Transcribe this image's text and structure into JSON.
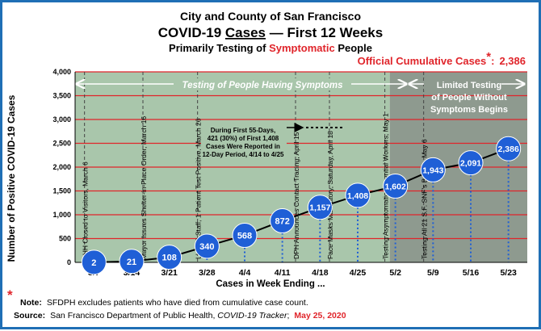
{
  "header": {
    "line1": "City and County of San Francisco",
    "line2a": "COVID-19 ",
    "line2b": "Cases",
    "line2c": " — First 12 Weeks",
    "line3a": "Primarily Testing of ",
    "line3b": "Symptomatic",
    "line3c": " People",
    "official_label": "Official Cumulative Cases",
    "official_star": "*",
    "official_sep": ":",
    "official_value": "2,386"
  },
  "bands": {
    "symptom_label": "Testing of People Having Symptoms",
    "limited_line1": "Limited Testing",
    "limited_line2": "of People Without",
    "limited_line3": "Symptoms Begins"
  },
  "annotation": {
    "line1": "During First 55-Days,",
    "line2": "421 (30%) of First 1,408",
    "line3": "Cases Were Reported in",
    "line4": "12-Day Period, 4/14 to 4/25"
  },
  "events": [
    {
      "text": "LHH Closed to Visitors, March 6"
    },
    {
      "text": "Mayor Issues Shelter-in-Place Order, March 16"
    },
    {
      "text": "LHH: 6 Staff, 1 Patient Test Positive, March 26"
    },
    {
      "text": "DPH Announces Contact Tracing, April 15"
    },
    {
      "text": "Face Masks Mandatory, Saturday, April 18"
    },
    {
      "text": "Testing Asymptomatic Essential Workers, May 1"
    },
    {
      "text": "Testing All 21 S.F. SNF's Begins, May 6"
    }
  ],
  "footer": {
    "note_star": "*",
    "note_bold": "Note:",
    "note_text": "SFDPH excludes patients who have died from cumulative case count.",
    "source_bold": "Source:",
    "source_text": "San Francisco Department of Public Health, ",
    "source_italic": "COVID-19 Tracker",
    "source_comma": ";",
    "source_date": "May 25, 2020"
  },
  "colors": {
    "green_band": "#a9c6ab",
    "gray_band": "#8e9a8f",
    "gridline": "#e0252b",
    "bubble": "#1f5fd6",
    "red_text": "#e0252b",
    "frame": "#1f6fb5"
  },
  "chart_data": {
    "type": "line",
    "title": "COVID-19 Cases — First 12 Weeks",
    "xlabel": "Cases in Week Ending ...",
    "ylabel": "Number of Positive COVID-19 Cases",
    "categories": [
      "3/7",
      "3/14",
      "3/21",
      "3/28",
      "4/4",
      "4/11",
      "4/18",
      "4/25",
      "5/2",
      "5/9",
      "5/16",
      "5/23"
    ],
    "series": [
      {
        "values": [
          2,
          21,
          108,
          340,
          568,
          872,
          1157,
          1408,
          1602,
          1943,
          2091,
          2386
        ],
        "labels": [
          "2",
          "21",
          "108",
          "340",
          "568",
          "872",
          "1,157",
          "1,408",
          "1,602",
          "1,943",
          "2,091",
          "2,386"
        ]
      }
    ],
    "ylim": [
      0,
      4000
    ],
    "yticks": [
      "0",
      "500",
      "1,000",
      "1,500",
      "2,000",
      "2,500",
      "3,000",
      "3,500",
      "4,000"
    ],
    "grid": true,
    "legend": "none"
  }
}
